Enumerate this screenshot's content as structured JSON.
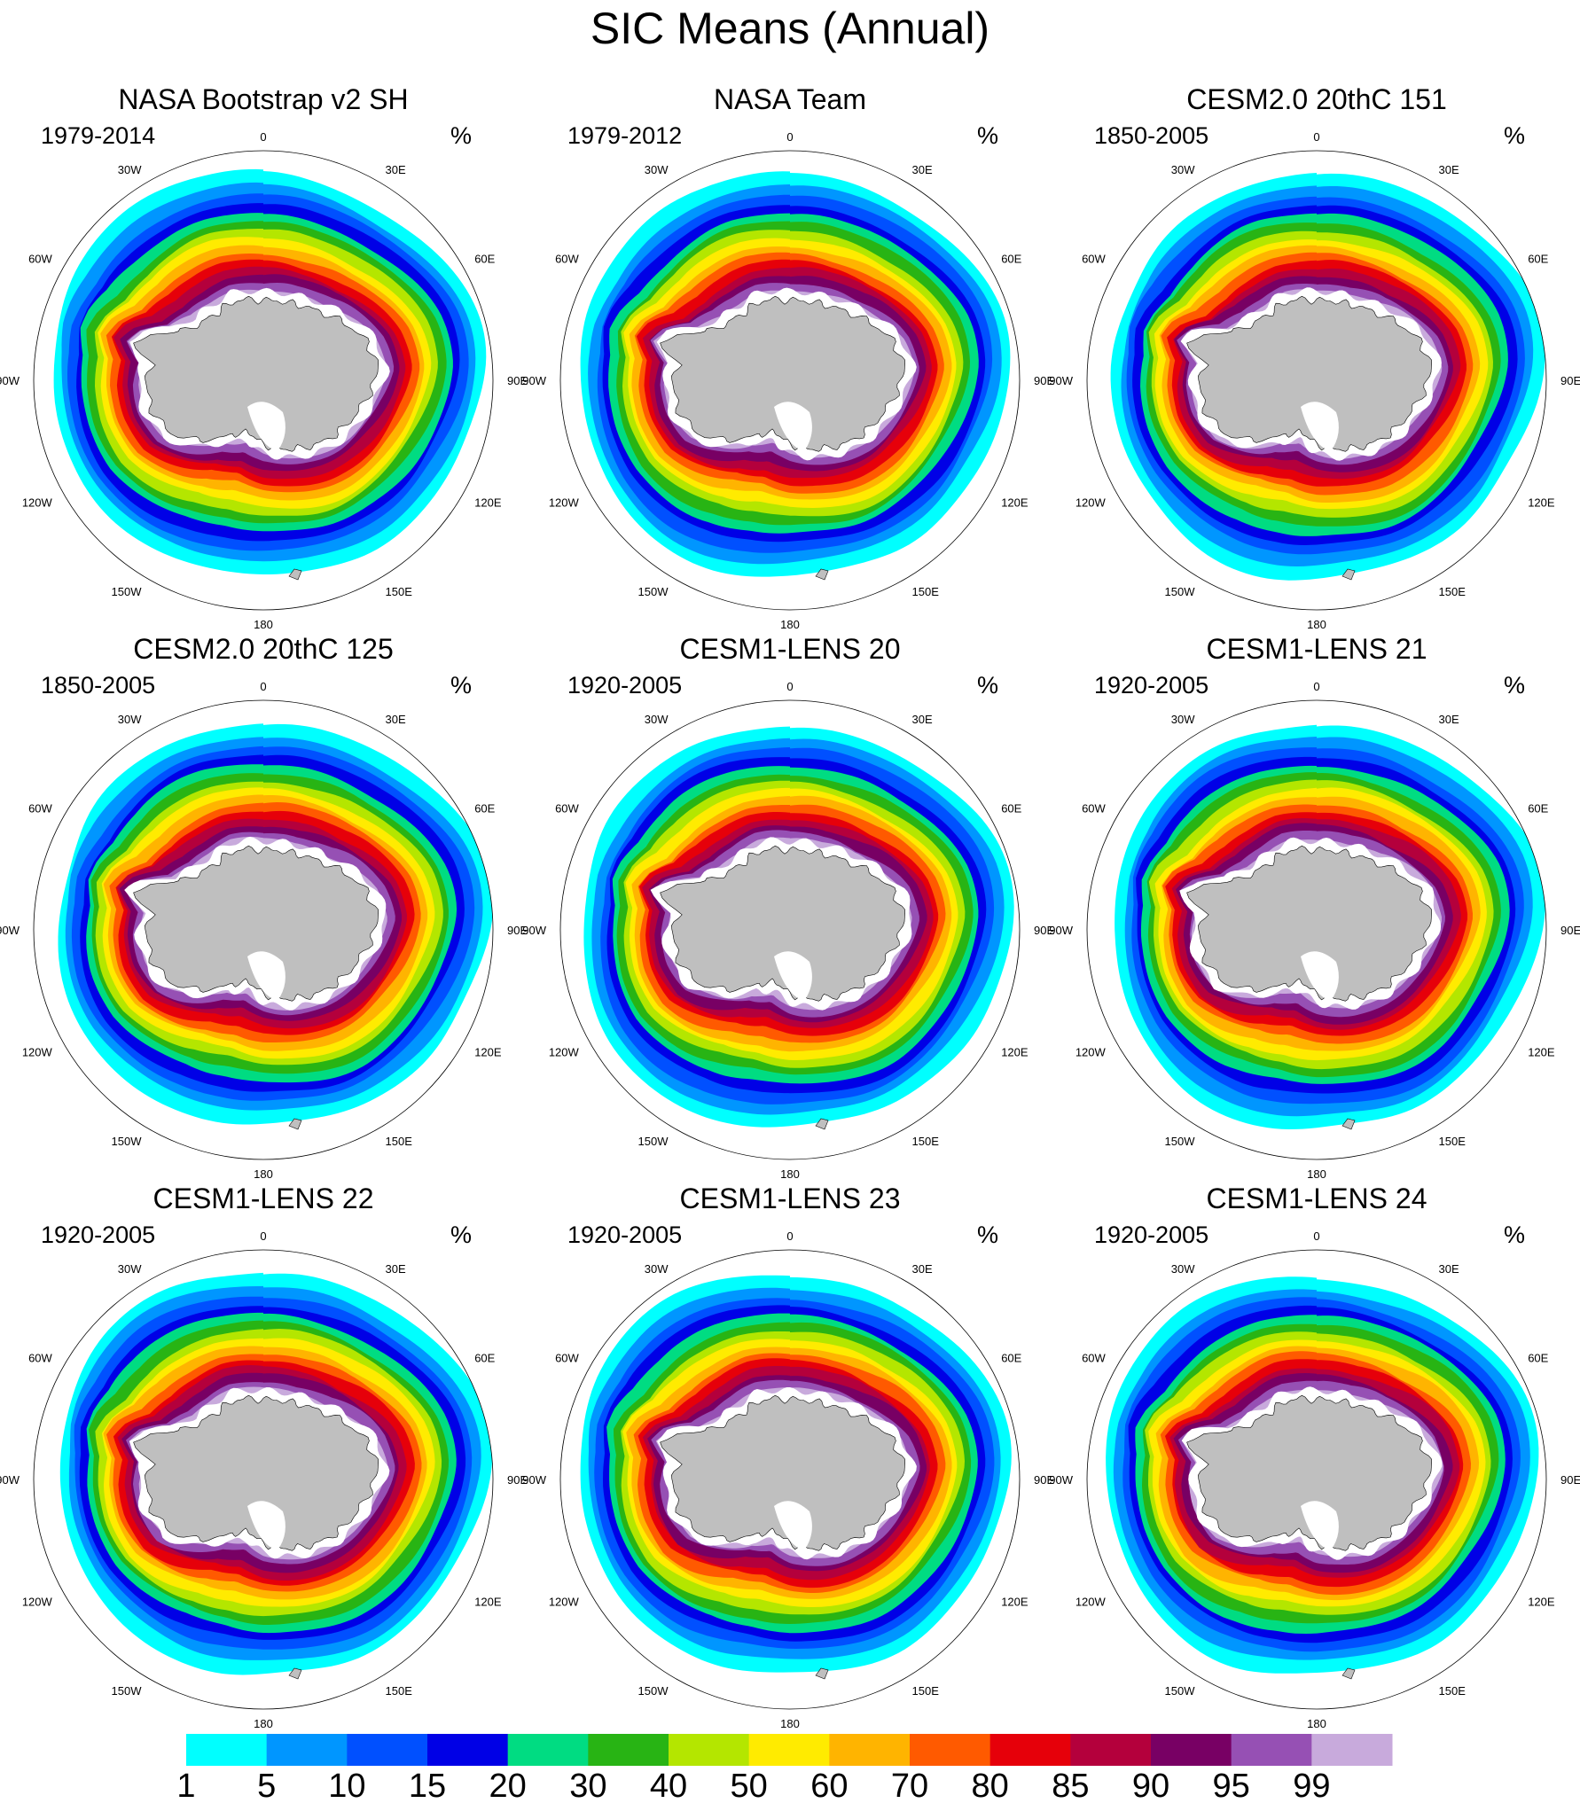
{
  "title": "SIC Means (Annual)",
  "lon_labels": [
    "0",
    "30E",
    "60E",
    "90E",
    "120E",
    "150E",
    "180",
    "150W",
    "120W",
    "90W",
    "60W",
    "30W"
  ],
  "panels": [
    {
      "title": "NASA Bootstrap v2 SH",
      "period": "1979-2014",
      "units": "%"
    },
    {
      "title": "NASA Team",
      "period": "1979-2012",
      "units": "%"
    },
    {
      "title": "CESM2.0 20thC 151",
      "period": "1850-2005",
      "units": "%"
    },
    {
      "title": "CESM2.0 20thC 125",
      "period": "1850-2005",
      "units": "%"
    },
    {
      "title": "CESM1-LENS 20",
      "period": "1920-2005",
      "units": "%"
    },
    {
      "title": "CESM1-LENS 21",
      "period": "1920-2005",
      "units": "%"
    },
    {
      "title": "CESM1-LENS 22",
      "period": "1920-2005",
      "units": "%"
    },
    {
      "title": "CESM1-LENS 23",
      "period": "1920-2005",
      "units": "%"
    },
    {
      "title": "CESM1-LENS 24",
      "period": "1920-2005",
      "units": "%"
    }
  ],
  "colorbar": {
    "labels": [
      "1",
      "5",
      "10",
      "15",
      "20",
      "30",
      "40",
      "50",
      "60",
      "70",
      "80",
      "85",
      "90",
      "95",
      "99"
    ],
    "colors": [
      "#00ffff",
      "#0096ff",
      "#0050ff",
      "#0000e6",
      "#00dc82",
      "#28b414",
      "#b4e600",
      "#ffeb00",
      "#ffb400",
      "#ff5a00",
      "#e6000a",
      "#b4003c",
      "#780064",
      "#9650b4",
      "#c8aadc"
    ]
  },
  "colors": {
    "land": "#bfbfbf",
    "ice_shelf": "#ffffff",
    "coast": "#000000"
  }
}
